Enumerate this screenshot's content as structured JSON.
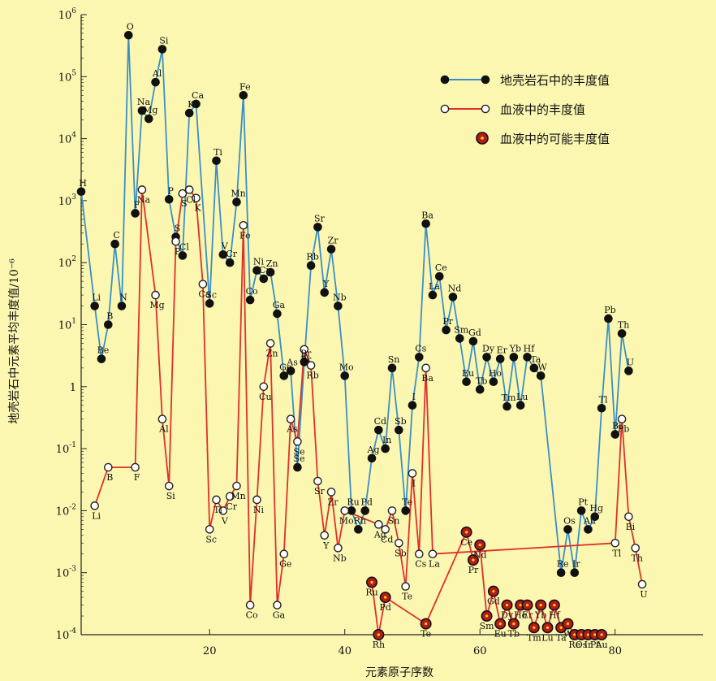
{
  "chart_data": {
    "type": "line",
    "title": "",
    "xlabel": "元素原子序数",
    "ylabel": "地壳岩石中元素平均丰度值/10⁻⁶",
    "x_range": [
      1,
      93
    ],
    "y_range_log10": [
      -4,
      6
    ],
    "y_ticks": [
      {
        "b": "10",
        "e": "6"
      },
      {
        "b": "10",
        "e": "5"
      },
      {
        "b": "10",
        "e": "4"
      },
      {
        "b": "10",
        "e": "3"
      },
      {
        "b": "10",
        "e": "2"
      },
      {
        "b": "10",
        "e": "1"
      },
      {
        "b": "1",
        "e": ""
      },
      {
        "b": "10",
        "e": "-1"
      },
      {
        "b": "10",
        "e": "-2"
      },
      {
        "b": "10",
        "e": "-3"
      },
      {
        "b": "10",
        "e": "-4"
      }
    ],
    "x_ticks": [
      "20",
      "40",
      "60",
      "80"
    ],
    "x_tick_values": [
      20,
      40,
      60,
      80
    ],
    "grid": false,
    "legend_position": "top-right",
    "colors": {
      "crust": "#3a8fc8",
      "blood": "#e0302c",
      "possible": "#8b0f0f",
      "background": "#fbf7b0"
    },
    "series": [
      {
        "name": "地壳岩石中的丰度值",
        "points": [
          {
            "z": 1,
            "el": "H",
            "v": 1400
          },
          {
            "z": 3,
            "el": "Li",
            "v": 20
          },
          {
            "z": 4,
            "el": "Be",
            "v": 2.8
          },
          {
            "z": 5,
            "el": "B",
            "v": 10
          },
          {
            "z": 6,
            "el": "C",
            "v": 200
          },
          {
            "z": 7,
            "el": "N",
            "v": 20
          },
          {
            "z": 8,
            "el": "O",
            "v": 466000
          },
          {
            "z": 9,
            "el": "F",
            "v": 625
          },
          {
            "z": 10,
            "el": "Na",
            "v": 28300
          },
          {
            "z": 11,
            "el": "Mg",
            "v": 20900
          },
          {
            "z": 12,
            "el": "Al",
            "v": 81300
          },
          {
            "z": 13,
            "el": "Si",
            "v": 277200
          },
          {
            "z": 14,
            "el": "P",
            "v": 1050
          },
          {
            "z": 15,
            "el": "S",
            "v": 260
          },
          {
            "z": 16,
            "el": "Cl",
            "v": 130
          },
          {
            "z": 17,
            "el": "K",
            "v": 25900
          },
          {
            "z": 18,
            "el": "Ca",
            "v": 36300
          },
          {
            "z": 20,
            "el": "Sc",
            "v": 22
          },
          {
            "z": 21,
            "el": "Ti",
            "v": 4400
          },
          {
            "z": 22,
            "el": "V",
            "v": 135
          },
          {
            "z": 23,
            "el": "Cr",
            "v": 100
          },
          {
            "z": 24,
            "el": "Mn",
            "v": 950
          },
          {
            "z": 25,
            "el": "Fe",
            "v": 50000
          },
          {
            "z": 26,
            "el": "Co",
            "v": 25
          },
          {
            "z": 27,
            "el": "Ni",
            "v": 75
          },
          {
            "z": 28,
            "el": "Cu",
            "v": 55
          },
          {
            "z": 29,
            "el": "Zn",
            "v": 70
          },
          {
            "z": 30,
            "el": "Ga",
            "v": 15
          },
          {
            "z": 31,
            "el": "Ge",
            "v": 1.5
          },
          {
            "z": 32,
            "el": "As",
            "v": 1.8
          },
          {
            "z": 33,
            "el": "Se",
            "v": 0.05
          },
          {
            "z": 34,
            "el": "Br",
            "v": 2.5
          },
          {
            "z": 35,
            "el": "Rb",
            "v": 90
          },
          {
            "z": 36,
            "el": "Sr",
            "v": 375
          },
          {
            "z": 37,
            "el": "Y",
            "v": 33
          },
          {
            "z": 38,
            "el": "Zr",
            "v": 165
          },
          {
            "z": 39,
            "el": "Nb",
            "v": 20
          },
          {
            "z": 40,
            "el": "Mo",
            "v": 1.5
          },
          {
            "z": 41,
            "el": "Ru",
            "v": 0.01
          },
          {
            "z": 42,
            "el": "Rh",
            "v": 0.005
          },
          {
            "z": 43,
            "el": "Pd",
            "v": 0.01
          },
          {
            "z": 44,
            "el": "Ag",
            "v": 0.07
          },
          {
            "z": 45,
            "el": "Cd",
            "v": 0.2
          },
          {
            "z": 46,
            "el": "In",
            "v": 0.1
          },
          {
            "z": 47,
            "el": "Sn",
            "v": 2
          },
          {
            "z": 48,
            "el": "Sb",
            "v": 0.2
          },
          {
            "z": 49,
            "el": "Te",
            "v": 0.01
          },
          {
            "z": 50,
            "el": "I",
            "v": 0.5
          },
          {
            "z": 51,
            "el": "Cs",
            "v": 3
          },
          {
            "z": 52,
            "el": "Ba",
            "v": 425
          },
          {
            "z": 53,
            "el": "La",
            "v": 30
          },
          {
            "z": 54,
            "el": "Ce",
            "v": 60
          },
          {
            "z": 55,
            "el": "Pr",
            "v": 8.2
          },
          {
            "z": 56,
            "el": "Nd",
            "v": 28
          },
          {
            "z": 57,
            "el": "Sm",
            "v": 6
          },
          {
            "z": 58,
            "el": "Eu",
            "v": 1.2
          },
          {
            "z": 59,
            "el": "Gd",
            "v": 5.4
          },
          {
            "z": 60,
            "el": "Tb",
            "v": 0.9
          },
          {
            "z": 61,
            "el": "Dy",
            "v": 3
          },
          {
            "z": 62,
            "el": "Ho",
            "v": 1.2
          },
          {
            "z": 63,
            "el": "Er",
            "v": 2.8
          },
          {
            "z": 64,
            "el": "Tm",
            "v": 0.48
          },
          {
            "z": 65,
            "el": "Yb",
            "v": 3
          },
          {
            "z": 66,
            "el": "Lu",
            "v": 0.5
          },
          {
            "z": 67,
            "el": "Hf",
            "v": 3
          },
          {
            "z": 68,
            "el": "Ta",
            "v": 2
          },
          {
            "z": 69,
            "el": "W",
            "v": 1.5
          },
          {
            "z": 72,
            "el": "Re",
            "v": 0.001
          },
          {
            "z": 73,
            "el": "Os",
            "v": 0.005
          },
          {
            "z": 74,
            "el": "Ir",
            "v": 0.001
          },
          {
            "z": 75,
            "el": "Pt",
            "v": 0.01
          },
          {
            "z": 76,
            "el": "Au",
            "v": 0.005
          },
          {
            "z": 77,
            "el": "Hg",
            "v": 0.008
          },
          {
            "z": 78,
            "el": "Tl",
            "v": 0.45
          },
          {
            "z": 79,
            "el": "Pb",
            "v": 12.5
          },
          {
            "z": 80,
            "el": "Bi",
            "v": 0.17
          },
          {
            "z": 81,
            "el": "Th",
            "v": 7.2
          },
          {
            "z": 82,
            "el": "U",
            "v": 1.8
          }
        ]
      },
      {
        "name": "血液中的丰度值",
        "points": [
          {
            "z": 3,
            "el": "Li",
            "v": 0.012
          },
          {
            "z": 5,
            "el": "B",
            "v": 0.05
          },
          {
            "z": 9,
            "el": "F",
            "v": 0.05
          },
          {
            "z": 10,
            "el": "Na",
            "v": 1500
          },
          {
            "z": 12,
            "el": "Mg",
            "v": 30
          },
          {
            "z": 13,
            "el": "Al",
            "v": 0.3
          },
          {
            "z": 14,
            "el": "Si",
            "v": 0.025
          },
          {
            "z": 15,
            "el": "P",
            "v": 220
          },
          {
            "z": 16,
            "el": "S",
            "v": 1300
          },
          {
            "z": 17,
            "el": "Cl",
            "v": 1500
          },
          {
            "z": 18,
            "el": "K",
            "v": 1100
          },
          {
            "z": 19,
            "el": "Ca",
            "v": 45
          },
          {
            "z": 20,
            "el": "Sc",
            "v": 0.005
          },
          {
            "z": 21,
            "el": "Ti",
            "v": 0.015
          },
          {
            "z": 22,
            "el": "V",
            "v": 0.01
          },
          {
            "z": 23,
            "el": "Cr",
            "v": 0.017
          },
          {
            "z": 24,
            "el": "Mn",
            "v": 0.025
          },
          {
            "z": 25,
            "el": "Fe",
            "v": 400
          },
          {
            "z": 26,
            "el": "Co",
            "v": 0.0003
          },
          {
            "z": 27,
            "el": "Ni",
            "v": 0.015
          },
          {
            "z": 28,
            "el": "Cu",
            "v": 1
          },
          {
            "z": 29,
            "el": "Zn",
            "v": 5
          },
          {
            "z": 30,
            "el": "Ga",
            "v": 0.0003
          },
          {
            "z": 31,
            "el": "Ge",
            "v": 0.002
          },
          {
            "z": 32,
            "el": "As",
            "v": 0.3
          },
          {
            "z": 33,
            "el": "Se",
            "v": 0.13
          },
          {
            "z": 34,
            "el": "Br",
            "v": 4
          },
          {
            "z": 35,
            "el": "Rb",
            "v": 2.2
          },
          {
            "z": 36,
            "el": "Sr",
            "v": 0.03
          },
          {
            "z": 37,
            "el": "Y",
            "v": 0.004
          },
          {
            "z": 38,
            "el": "Zr",
            "v": 0.02
          },
          {
            "z": 39,
            "el": "Nb",
            "v": 0.0025
          },
          {
            "z": 40,
            "el": "Mo",
            "v": 0.01
          },
          {
            "z": 45,
            "el": "Ag",
            "v": 0.006
          },
          {
            "z": 46,
            "el": "Cd",
            "v": 0.005
          },
          {
            "z": 47,
            "el": "Sn",
            "v": 0.01
          },
          {
            "z": 48,
            "el": "Sb",
            "v": 0.003
          },
          {
            "z": 49,
            "el": "Te",
            "v": 0.0006
          },
          {
            "z": 50,
            "el": "I",
            "v": 0.04
          },
          {
            "z": 51,
            "el": "Cs",
            "v": 0.002
          },
          {
            "z": 52,
            "el": "Ba",
            "v": 2
          },
          {
            "z": 53,
            "el": "La",
            "v": 0.002
          },
          {
            "z": 80,
            "el": "Tl",
            "v": 0.003
          },
          {
            "z": 81,
            "el": "Pb",
            "v": 0.3
          },
          {
            "z": 82,
            "el": "Bi",
            "v": 0.008
          },
          {
            "z": 83,
            "el": "Th",
            "v": 0.0025
          },
          {
            "z": 84,
            "el": "U",
            "v": 0.00065
          }
        ]
      },
      {
        "name": "血液中的可能丰度值",
        "points": [
          {
            "z": 44,
            "el": "Ru",
            "v": 0.0007
          },
          {
            "z": 45,
            "el": "Rh",
            "v": 0.0001
          },
          {
            "z": 46,
            "el": "Pd",
            "v": 0.0004
          },
          {
            "z": 52,
            "el": "Te",
            "v": 0.00015
          },
          {
            "z": 58,
            "el": "Ce",
            "v": 0.0045
          },
          {
            "z": 59,
            "el": "Pr",
            "v": 0.0016
          },
          {
            "z": 60,
            "el": "Nd",
            "v": 0.0028
          },
          {
            "z": 61,
            "el": "Sm",
            "v": 0.0002
          },
          {
            "z": 62,
            "el": "Gd",
            "v": 0.0005
          },
          {
            "z": 63,
            "el": "Eu",
            "v": 0.00015
          },
          {
            "z": 64,
            "el": "Dy",
            "v": 0.0003
          },
          {
            "z": 65,
            "el": "Tb",
            "v": 0.00015
          },
          {
            "z": 66,
            "el": "Ho",
            "v": 0.0003
          },
          {
            "z": 67,
            "el": "Er",
            "v": 0.0003
          },
          {
            "z": 68,
            "el": "Tm",
            "v": 0.00013
          },
          {
            "z": 69,
            "el": "Yb",
            "v": 0.0003
          },
          {
            "z": 70,
            "el": "Lu",
            "v": 0.00013
          },
          {
            "z": 71,
            "el": "Hf",
            "v": 0.0003
          },
          {
            "z": 72,
            "el": "Ta",
            "v": 0.00013
          },
          {
            "z": 73,
            "el": "W",
            "v": 0.00015
          },
          {
            "z": 74,
            "el": "Re",
            "v": 0.0001
          },
          {
            "z": 75,
            "el": "Os",
            "v": 0.0001
          },
          {
            "z": 76,
            "el": "Ir",
            "v": 0.0001
          },
          {
            "z": 77,
            "el": "Pt",
            "v": 0.0001
          },
          {
            "z": 78,
            "el": "Au",
            "v": 0.0001
          }
        ]
      }
    ]
  }
}
